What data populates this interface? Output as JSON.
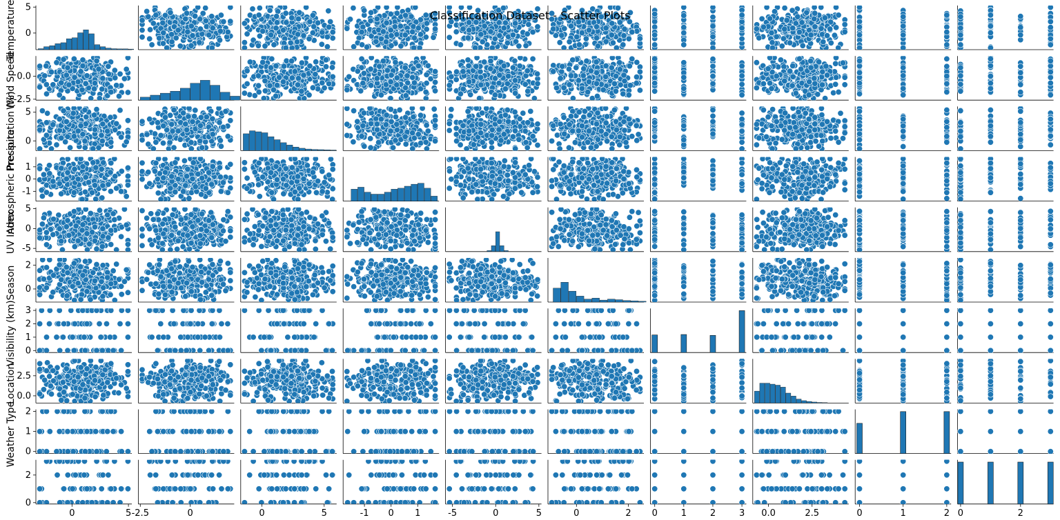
{
  "chart_data": {
    "type": "scatter",
    "title": "Classification Dataset - Scatter Plots",
    "layout": "pairplot",
    "grid": false,
    "legend": "none",
    "point_color": "#1f77b4",
    "bar_color": "#1f77b4",
    "variables": [
      {
        "key": "temp",
        "label": "Temperature",
        "lim": [
          -3.2,
          5.3
        ],
        "ticks": [
          0,
          5
        ],
        "kind": "continuous"
      },
      {
        "key": "wind",
        "label": "Wind Speed",
        "lim": [
          -2.6,
          2.2
        ],
        "ticks": [
          -2.5,
          0.0
        ],
        "y_tick_labels": [
          "-2.5",
          "0.0"
        ],
        "kind": "continuous"
      },
      {
        "key": "prec",
        "label": "Precipitation (%)",
        "lim": [
          -1.7,
          6.0
        ],
        "ticks": [
          0,
          5
        ],
        "kind": "continuous"
      },
      {
        "key": "press",
        "label": "Atmospheric Pressure",
        "lim": [
          -1.8,
          1.8
        ],
        "ticks": [
          -1,
          0,
          1
        ],
        "kind": "continuous"
      },
      {
        "key": "uv",
        "label": "UV Index",
        "lim": [
          -5.8,
          5.3
        ],
        "ticks": [
          -5,
          0,
          5
        ],
        "kind": "continuous"
      },
      {
        "key": "vis",
        "label": "Visibility (km)",
        "lim": [
          -1.1,
          2.6
        ],
        "ticks": [
          0,
          2
        ],
        "kind": "continuous"
      },
      {
        "key": "season",
        "label": "Season",
        "lim": [
          -0.15,
          3.15
        ],
        "ticks": [
          0,
          1,
          2,
          3
        ],
        "kind": "discrete",
        "levels": [
          0,
          1,
          2,
          3
        ],
        "hist_heights": [
          0.42,
          0.43,
          0.41,
          1.0
        ]
      },
      {
        "key": "loc",
        "label": "Location",
        "lim": [
          -0.9,
          4.6
        ],
        "ticks": [
          0.0,
          2.5
        ],
        "x_tick_labels": [
          "0.0",
          "2.5"
        ],
        "y_tick_labels": [
          "0.0",
          "2.5"
        ],
        "kind": "continuous"
      },
      {
        "key": "loc2",
        "label": "Location",
        "lim": [
          -0.1,
          2.1
        ],
        "ticks": [
          0,
          1,
          2
        ],
        "kind": "discrete",
        "levels": [
          0,
          1,
          2
        ],
        "hist_heights": [
          0.72,
          1.0,
          1.0
        ]
      },
      {
        "key": "wtype",
        "label": "Weather Type",
        "lim": [
          -0.1,
          3.1
        ],
        "ticks": [
          0,
          2
        ],
        "kind": "discrete",
        "levels": [
          0,
          1,
          2,
          3
        ],
        "hist_heights": [
          1.0,
          1.0,
          1.0,
          1.0
        ]
      }
    ],
    "row_labels": [
      "Temperature",
      "Wind Speed",
      "Precipitation (%)",
      "Atmospheric Pressure",
      "UV Index",
      "Season",
      "Visibility (km)",
      "Location",
      "Weather Type"
    ],
    "histograms": {
      "temp": {
        "bins": [
          -3.0,
          -2.5,
          -2.0,
          -1.5,
          -1.0,
          -0.5,
          0.0,
          0.5,
          1.0,
          1.5,
          2.0,
          2.5,
          3.0,
          3.5,
          4.0,
          4.5,
          5.0
        ],
        "heights": [
          0.05,
          0.15,
          0.2,
          0.3,
          0.35,
          0.55,
          0.6,
          0.85,
          1.0,
          0.8,
          0.25,
          0.15,
          0.08,
          0.05,
          0.04,
          0.04,
          0.03
        ]
      },
      "wind": {
        "bins": [
          -2.5,
          -2.0,
          -1.5,
          -1.0,
          -0.5,
          0.0,
          0.5,
          1.0,
          1.5,
          2.0
        ],
        "heights": [
          0.15,
          0.25,
          0.35,
          0.45,
          0.6,
          0.85,
          1.0,
          0.75,
          0.4,
          0.2
        ]
      },
      "prec": {
        "bins": [
          -1.5,
          -1.0,
          -0.5,
          0.0,
          0.5,
          1.0,
          1.5,
          2.0,
          2.5,
          3.0,
          3.5,
          4.0,
          4.5,
          5.0,
          5.5
        ],
        "heights": [
          0.85,
          1.0,
          0.95,
          0.9,
          0.7,
          0.55,
          0.4,
          0.28,
          0.18,
          0.12,
          0.08,
          0.06,
          0.05,
          0.04,
          0.03
        ]
      },
      "press": {
        "bins": [
          -1.5,
          -1.25,
          -1.0,
          -0.75,
          -0.5,
          -0.25,
          0.0,
          0.25,
          0.5,
          0.75,
          1.0,
          1.25,
          1.5
        ],
        "heights": [
          0.6,
          0.7,
          0.45,
          0.35,
          0.35,
          0.45,
          0.6,
          0.65,
          0.75,
          0.85,
          0.9,
          0.65,
          0.25
        ]
      },
      "uv": {
        "bins": [
          -1.0,
          -0.5,
          0.0,
          0.5,
          1.0
        ],
        "heights": [
          0.05,
          0.3,
          1.0,
          0.3,
          0.05
        ]
      },
      "vis": {
        "bins": [
          -0.9,
          -0.6,
          -0.3,
          0.0,
          0.3,
          0.6,
          0.9,
          1.2,
          1.5,
          1.8,
          2.1,
          2.4
        ],
        "heights": [
          0.7,
          1.0,
          0.55,
          0.3,
          0.15,
          0.2,
          0.1,
          0.15,
          0.12,
          0.08,
          0.06,
          0.04
        ]
      },
      "loc": {
        "bins": [
          -0.8,
          -0.5,
          -0.2,
          0.1,
          0.4,
          0.7,
          1.0,
          1.3,
          1.6,
          1.9,
          2.2,
          2.5,
          2.8,
          3.1
        ],
        "heights": [
          0.6,
          1.0,
          1.0,
          0.95,
          0.9,
          0.8,
          0.5,
          0.35,
          0.2,
          0.12,
          0.08,
          0.05,
          0.03,
          0.02
        ]
      }
    }
  }
}
